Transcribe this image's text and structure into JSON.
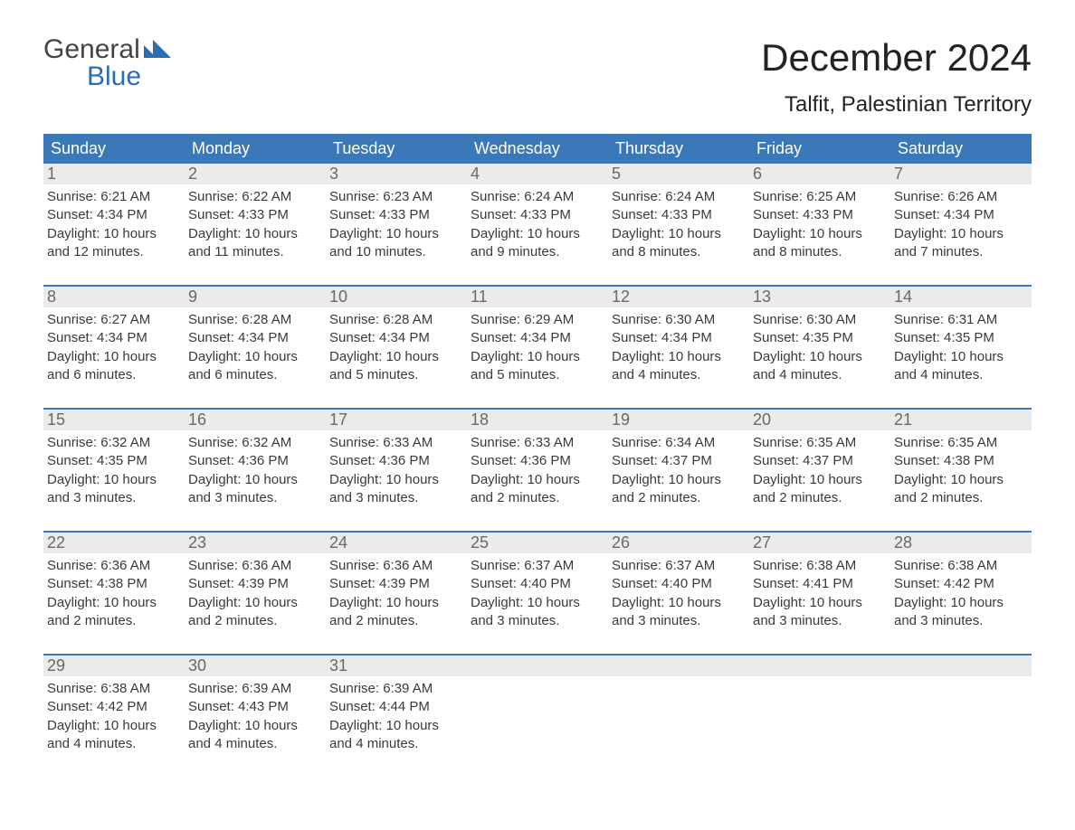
{
  "logo": {
    "top": "General",
    "bottom": "Blue"
  },
  "title": "December 2024",
  "location": "Talfit, Palestinian Territory",
  "colors": {
    "header_bg": "#3b78b8",
    "header_text": "#ffffff",
    "daynum_bg": "#ebebeb",
    "daynum_text": "#696969",
    "body_text": "#3a3a3a",
    "week_divider": "#3b78b8"
  },
  "days_of_week": [
    "Sunday",
    "Monday",
    "Tuesday",
    "Wednesday",
    "Thursday",
    "Friday",
    "Saturday"
  ],
  "weeks": [
    [
      {
        "n": "1",
        "sr": "6:21 AM",
        "ss": "4:34 PM",
        "dl": "10 hours and 12 minutes."
      },
      {
        "n": "2",
        "sr": "6:22 AM",
        "ss": "4:33 PM",
        "dl": "10 hours and 11 minutes."
      },
      {
        "n": "3",
        "sr": "6:23 AM",
        "ss": "4:33 PM",
        "dl": "10 hours and 10 minutes."
      },
      {
        "n": "4",
        "sr": "6:24 AM",
        "ss": "4:33 PM",
        "dl": "10 hours and 9 minutes."
      },
      {
        "n": "5",
        "sr": "6:24 AM",
        "ss": "4:33 PM",
        "dl": "10 hours and 8 minutes."
      },
      {
        "n": "6",
        "sr": "6:25 AM",
        "ss": "4:33 PM",
        "dl": "10 hours and 8 minutes."
      },
      {
        "n": "7",
        "sr": "6:26 AM",
        "ss": "4:34 PM",
        "dl": "10 hours and 7 minutes."
      }
    ],
    [
      {
        "n": "8",
        "sr": "6:27 AM",
        "ss": "4:34 PM",
        "dl": "10 hours and 6 minutes."
      },
      {
        "n": "9",
        "sr": "6:28 AM",
        "ss": "4:34 PM",
        "dl": "10 hours and 6 minutes."
      },
      {
        "n": "10",
        "sr": "6:28 AM",
        "ss": "4:34 PM",
        "dl": "10 hours and 5 minutes."
      },
      {
        "n": "11",
        "sr": "6:29 AM",
        "ss": "4:34 PM",
        "dl": "10 hours and 5 minutes."
      },
      {
        "n": "12",
        "sr": "6:30 AM",
        "ss": "4:34 PM",
        "dl": "10 hours and 4 minutes."
      },
      {
        "n": "13",
        "sr": "6:30 AM",
        "ss": "4:35 PM",
        "dl": "10 hours and 4 minutes."
      },
      {
        "n": "14",
        "sr": "6:31 AM",
        "ss": "4:35 PM",
        "dl": "10 hours and 4 minutes."
      }
    ],
    [
      {
        "n": "15",
        "sr": "6:32 AM",
        "ss": "4:35 PM",
        "dl": "10 hours and 3 minutes."
      },
      {
        "n": "16",
        "sr": "6:32 AM",
        "ss": "4:36 PM",
        "dl": "10 hours and 3 minutes."
      },
      {
        "n": "17",
        "sr": "6:33 AM",
        "ss": "4:36 PM",
        "dl": "10 hours and 3 minutes."
      },
      {
        "n": "18",
        "sr": "6:33 AM",
        "ss": "4:36 PM",
        "dl": "10 hours and 2 minutes."
      },
      {
        "n": "19",
        "sr": "6:34 AM",
        "ss": "4:37 PM",
        "dl": "10 hours and 2 minutes."
      },
      {
        "n": "20",
        "sr": "6:35 AM",
        "ss": "4:37 PM",
        "dl": "10 hours and 2 minutes."
      },
      {
        "n": "21",
        "sr": "6:35 AM",
        "ss": "4:38 PM",
        "dl": "10 hours and 2 minutes."
      }
    ],
    [
      {
        "n": "22",
        "sr": "6:36 AM",
        "ss": "4:38 PM",
        "dl": "10 hours and 2 minutes."
      },
      {
        "n": "23",
        "sr": "6:36 AM",
        "ss": "4:39 PM",
        "dl": "10 hours and 2 minutes."
      },
      {
        "n": "24",
        "sr": "6:36 AM",
        "ss": "4:39 PM",
        "dl": "10 hours and 2 minutes."
      },
      {
        "n": "25",
        "sr": "6:37 AM",
        "ss": "4:40 PM",
        "dl": "10 hours and 3 minutes."
      },
      {
        "n": "26",
        "sr": "6:37 AM",
        "ss": "4:40 PM",
        "dl": "10 hours and 3 minutes."
      },
      {
        "n": "27",
        "sr": "6:38 AM",
        "ss": "4:41 PM",
        "dl": "10 hours and 3 minutes."
      },
      {
        "n": "28",
        "sr": "6:38 AM",
        "ss": "4:42 PM",
        "dl": "10 hours and 3 minutes."
      }
    ],
    [
      {
        "n": "29",
        "sr": "6:38 AM",
        "ss": "4:42 PM",
        "dl": "10 hours and 4 minutes."
      },
      {
        "n": "30",
        "sr": "6:39 AM",
        "ss": "4:43 PM",
        "dl": "10 hours and 4 minutes."
      },
      {
        "n": "31",
        "sr": "6:39 AM",
        "ss": "4:44 PM",
        "dl": "10 hours and 4 minutes."
      },
      null,
      null,
      null,
      null
    ]
  ],
  "labels": {
    "sunrise": "Sunrise: ",
    "sunset": "Sunset: ",
    "daylight": "Daylight: "
  }
}
